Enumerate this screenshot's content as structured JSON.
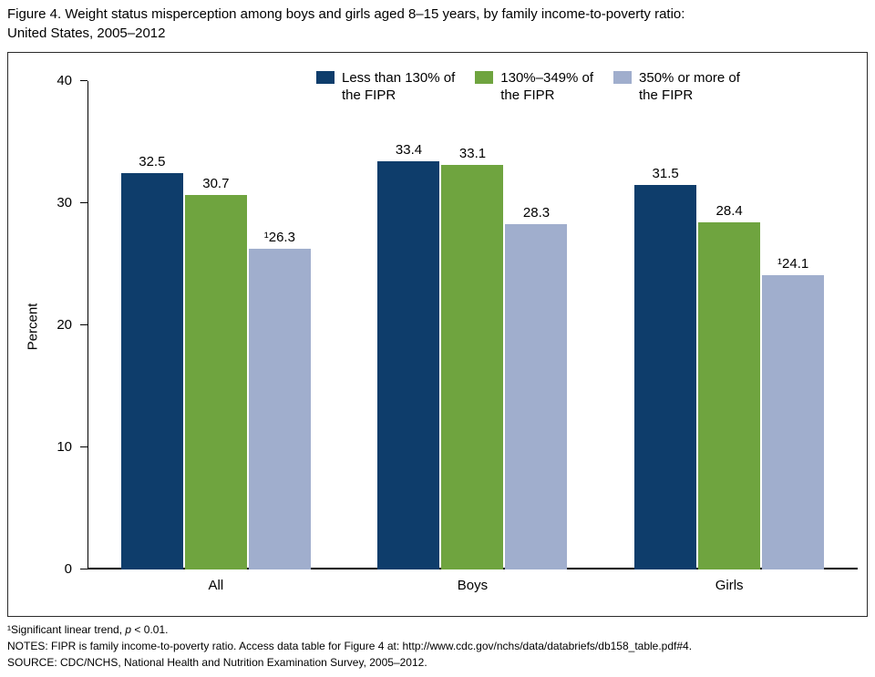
{
  "title": {
    "line1": "Figure 4. Weight status misperception among boys and girls aged 8–15 years, by family income-to-poverty ratio:",
    "line2": "United States, 2005–2012"
  },
  "chart_data": {
    "type": "bar",
    "categories": [
      "All",
      "Boys",
      "Girls"
    ],
    "series": [
      {
        "name": "Less than 130% of the FIPR",
        "color": "#0e3d6b",
        "values": [
          32.5,
          33.4,
          31.5
        ],
        "labels": [
          "32.5",
          "33.4",
          "31.5"
        ]
      },
      {
        "name": "130%–349% of the FIPR",
        "color": "#6fa43f",
        "values": [
          30.7,
          33.1,
          28.4
        ],
        "labels": [
          "30.7",
          "33.1",
          "28.4"
        ]
      },
      {
        "name": "350% or more of the FIPR",
        "color": "#a0aecd",
        "values": [
          26.3,
          28.3,
          24.1
        ],
        "labels": [
          "¹26.3",
          "28.3",
          "¹24.1"
        ]
      }
    ],
    "legend": [
      {
        "label_line1": "Less than 130% of",
        "label_line2": "the FIPR",
        "color": "#0e3d6b"
      },
      {
        "label_line1": "130%–349% of",
        "label_line2": "the FIPR",
        "color": "#6fa43f"
      },
      {
        "label_line1": "350% or more of",
        "label_line2": "the FIPR",
        "color": "#a0aecd"
      }
    ],
    "xlabel": "",
    "ylabel": "Percent",
    "ylim": [
      0,
      40
    ],
    "yticks": [
      0,
      10,
      20,
      30,
      40
    ],
    "grid": false,
    "legend_position": "top"
  },
  "footnotes": {
    "note1_prefix": "¹Significant linear trend, ",
    "note1_italic": "p",
    "note1_suffix": " < 0.01.",
    "notes": "NOTES: FIPR is family income-to-poverty ratio. Access data table for Figure 4 at: http://www.cdc.gov/nchs/data/databriefs/db158_table.pdf#4.",
    "source": "SOURCE: CDC/NCHS, National Health and Nutrition Examination Survey, 2005–2012."
  }
}
